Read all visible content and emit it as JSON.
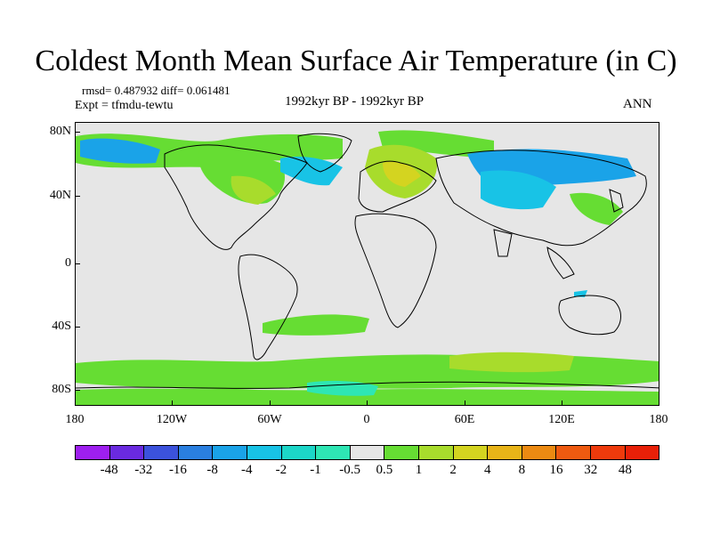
{
  "title": "Coldest Month Mean Surface Air Temperature (in C)",
  "stats": "rmsd= 0.487932 diff= 0.061481",
  "expt": "Expt = tfmdu-tewtu",
  "period": "1992kyr BP - 1992kyr BP",
  "season": "ANN",
  "map": {
    "lat_labels": [
      "80N",
      "40N",
      "0",
      "40S",
      "80S"
    ],
    "lon_labels": [
      "180",
      "120W",
      "60W",
      "0",
      "60E",
      "120E",
      "180"
    ],
    "lat_range": [
      -90,
      90
    ],
    "lon_range": [
      -180,
      180
    ],
    "land_color": "#e6e6e6",
    "coast_color": "#000000"
  },
  "colorbar": {
    "labels": [
      "-48",
      "-32",
      "-16",
      "-8",
      "-4",
      "-2",
      "-1",
      "-0.5",
      "0.5",
      "1",
      "2",
      "4",
      "8",
      "16",
      "32",
      "48"
    ],
    "colors": [
      "#9e1ff0",
      "#6a2ae0",
      "#3b52dc",
      "#2a7fe0",
      "#1aa3e8",
      "#18c3e6",
      "#1cd6c8",
      "#2ee6b4",
      "#e6e6e6",
      "#66dd33",
      "#a8dc2c",
      "#d4d420",
      "#e8b418",
      "#ec8a12",
      "#ee5a10",
      "#ee3a0c",
      "#e82008"
    ]
  }
}
